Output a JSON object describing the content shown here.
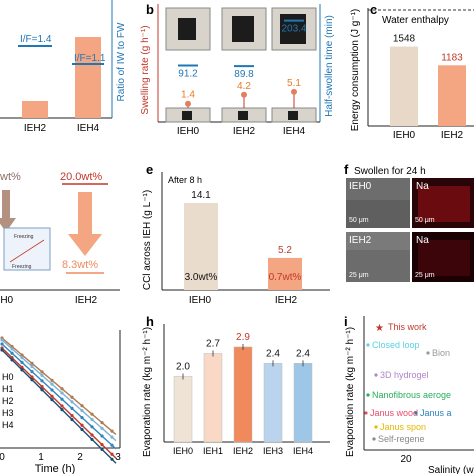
{
  "panels": {
    "a": {
      "ylabel": "Ratio of IW to FW",
      "bars": [
        {
          "label": "IEH2",
          "value": 0.6
        },
        {
          "label": "IEH4",
          "value": 1.55
        }
      ],
      "annotations": [
        "I/F=1.4",
        "I/F=1.1"
      ],
      "color": "#f4a582",
      "line_color": "#1f77b4"
    },
    "b": {
      "letter": "b",
      "ylabel_left": "Swelling rate (g h⁻¹)",
      "ylabel_right": "Half-swollen time (min)",
      "samples": [
        "IEH0",
        "IEH2",
        "IEH4"
      ],
      "swelling_rate": [
        1.4,
        4.2,
        5.1
      ],
      "half_swollen_time": [
        91.2,
        89.8,
        203.4
      ]
    },
    "c": {
      "letter": "c",
      "ylabel": "Energy consumption (J g⁻¹)",
      "reference": "Water enthalpy",
      "categories": [
        "IEH0",
        "IEH2"
      ],
      "values": [
        1548,
        1183
      ]
    },
    "d": {
      "categories": [
        "IEH0",
        "IEH2"
      ],
      "top_values": [
        "20.0wt%"
      ],
      "bottom_values": [
        "8.3wt%"
      ],
      "partial": "wt%",
      "inset_labels": [
        "Freezing",
        "Freezing"
      ]
    },
    "e": {
      "letter": "e",
      "note": "After  8 h",
      "ylabel": "CCl across IEH (g L⁻¹)",
      "categories": [
        "IEH0",
        "IEH2"
      ],
      "values": [
        14.1,
        5.2
      ],
      "inner_labels": [
        "3.0wt%",
        "0.7wt%"
      ]
    },
    "f": {
      "letter": "f",
      "title": "Swollen for 24 h",
      "tiles": [
        {
          "sample": "IEH0",
          "element": "Na",
          "scale_sem": "50 μm",
          "scale_map": "50 μm"
        },
        {
          "sample": "IEH2",
          "element": "Na",
          "scale_sem": "25 μm",
          "scale_map": "25 μm"
        }
      ]
    },
    "g": {
      "xlabel": "Time (h)",
      "xticks": [
        "0",
        "1",
        "2",
        "3"
      ],
      "series_labels": [
        "H0",
        "H1",
        "H2",
        "H3",
        "H4"
      ]
    },
    "h": {
      "letter": "h",
      "ylabel": "Evaporation rate (kg m⁻² h⁻¹)",
      "categories": [
        "IEH0",
        "IEH1",
        "IEH2",
        "IEH3",
        "IEH4"
      ],
      "values": [
        2.0,
        2.7,
        2.9,
        2.4,
        2.4
      ],
      "colors": [
        "#efe3d6",
        "#f9d9c6",
        "#f08a5d",
        "#b9d4ec",
        "#9ec6e6"
      ],
      "highlight_color": "#c0392b"
    },
    "i": {
      "letter": "i",
      "ylabel": "Evaporation rate (kg m⁻² h⁻¹)",
      "xlabel": "Salinity (w",
      "xtick": "20",
      "items": [
        {
          "label": "This work",
          "color": "#c0392b"
        },
        {
          "label": "Closed loop",
          "color": "#5ad1e6"
        },
        {
          "label": "Bion",
          "color": "#999999"
        },
        {
          "label": "3D hydrogel",
          "color": "#b084cc"
        },
        {
          "label": "Nanofibrous aeroge",
          "color": "#27ae60"
        },
        {
          "label": "Janus wood",
          "color": "#e74c6c"
        },
        {
          "label": "Janus a",
          "color": "#2980b9"
        },
        {
          "label": "Janus spon",
          "color": "#e6b800"
        },
        {
          "label": "Self-regene",
          "color": "#888888"
        }
      ]
    }
  },
  "chart_data": [
    {
      "type": "bar",
      "title": "",
      "categories": [
        "IEH0",
        "IEH2"
      ],
      "values": [
        1548,
        1183
      ],
      "ylabel": "Energy consumption (J g⁻¹)"
    },
    {
      "type": "bar",
      "categories": [
        "IEH0",
        "IEH2"
      ],
      "values": [
        14.1,
        5.2
      ],
      "ylabel": "CCl across IEH (g L⁻¹)"
    },
    {
      "type": "bar",
      "categories": [
        "IEH0",
        "IEH1",
        "IEH2",
        "IEH3",
        "IEH4"
      ],
      "values": [
        2.0,
        2.7,
        2.9,
        2.4,
        2.4
      ],
      "ylabel": "Evaporation rate (kg m⁻² h⁻¹)"
    },
    {
      "type": "line",
      "categories": [
        "IEH0",
        "IEH2",
        "IEH4"
      ],
      "series": [
        {
          "name": "Swelling rate (g h⁻¹)",
          "values": [
            1.4,
            4.2,
            5.1
          ]
        },
        {
          "name": "Half-swollen time (min)",
          "values": [
            91.2,
            89.8,
            203.4
          ]
        }
      ]
    }
  ]
}
